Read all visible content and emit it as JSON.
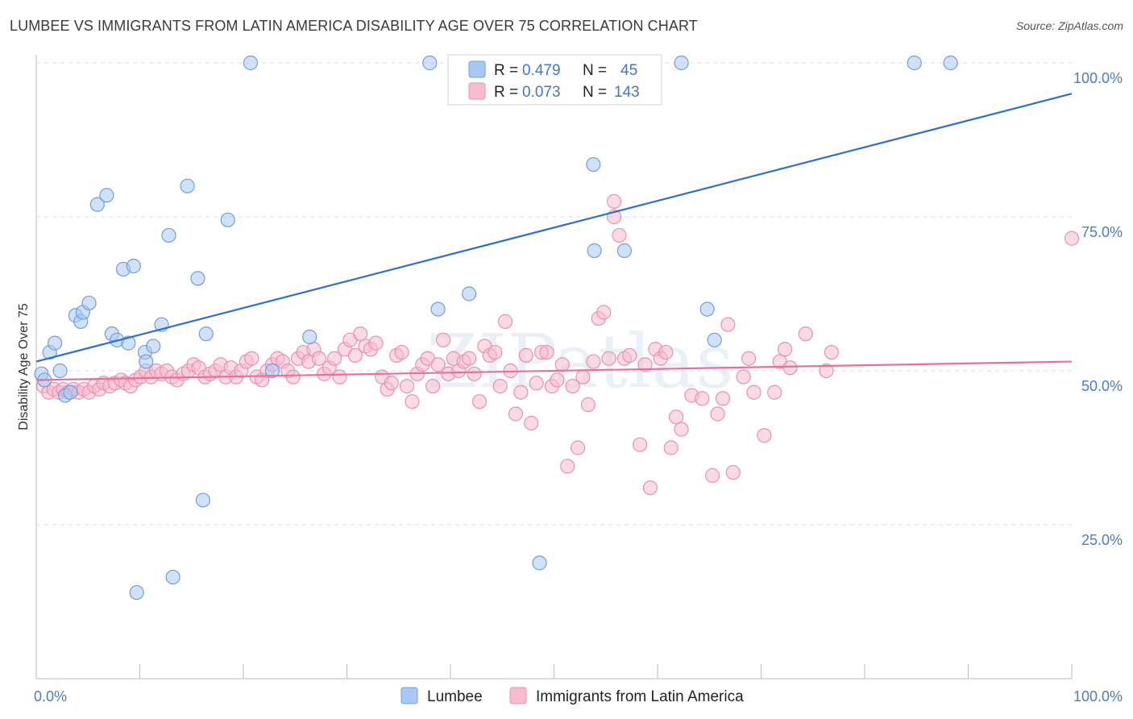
{
  "title": "LUMBEE VS IMMIGRANTS FROM LATIN AMERICA DISABILITY AGE OVER 75 CORRELATION CHART",
  "source": "Source: ZipAtlas.com",
  "watermark": "ZIPatlas",
  "colors": {
    "blue_fill": "#a9c8f3",
    "blue_stroke": "#6f9fe0",
    "blue_line": "#2f6fd0",
    "pink_fill": "#f6bdd0",
    "pink_stroke": "#ec8fae",
    "pink_line": "#e8709b",
    "grid": "#dedede",
    "tick_label": "#4a7cc9"
  },
  "legend": {
    "rows": [
      {
        "r_label": "R =",
        "r_value": "0.479",
        "n_label": "N =",
        "n_value": "45"
      },
      {
        "r_label": "R =",
        "r_value": "0.073",
        "n_label": "N =",
        "n_value": "143"
      }
    ]
  },
  "chart_data": {
    "type": "scatter",
    "title": "LUMBEE VS IMMIGRANTS FROM LATIN AMERICA DISABILITY AGE OVER 75 CORRELATION CHART",
    "xlabel": "",
    "ylabel": "Disability Age Over 75",
    "xlim": [
      0,
      100
    ],
    "ylim": [
      0,
      100
    ],
    "x_tick_labels": [
      "0.0%",
      "100.0%"
    ],
    "y_tick_labels": [
      {
        "value": 25,
        "label": "25.0%"
      },
      {
        "value": 50,
        "label": "50.0%"
      },
      {
        "value": 75,
        "label": "75.0%"
      },
      {
        "value": 100,
        "label": "100.0%"
      }
    ],
    "grid": true,
    "legend_position": "top-center",
    "series": [
      {
        "name": "Lumbee",
        "color": "#a9c8f3",
        "trend": {
          "x": [
            0,
            100
          ],
          "y": [
            51.5,
            95
          ]
        },
        "points": [
          [
            0.5,
            49.5
          ],
          [
            0.8,
            48.5
          ],
          [
            1.3,
            53
          ],
          [
            1.8,
            54.5
          ],
          [
            2.3,
            50
          ],
          [
            2.8,
            46
          ],
          [
            3.3,
            46.5
          ],
          [
            3.8,
            59
          ],
          [
            4.3,
            58
          ],
          [
            4.5,
            59.5
          ],
          [
            5.1,
            61
          ],
          [
            5.9,
            77
          ],
          [
            6.8,
            78.5
          ],
          [
            7.3,
            56
          ],
          [
            7.8,
            55
          ],
          [
            8.4,
            66.5
          ],
          [
            8.9,
            54.5
          ],
          [
            9.4,
            67
          ],
          [
            9.7,
            14
          ],
          [
            10.5,
            53
          ],
          [
            10.6,
            51.5
          ],
          [
            11.3,
            54
          ],
          [
            12.1,
            57.5
          ],
          [
            12.8,
            72
          ],
          [
            13.2,
            16.5
          ],
          [
            14.6,
            80
          ],
          [
            15.6,
            65
          ],
          [
            16.1,
            29
          ],
          [
            16.4,
            56
          ],
          [
            18.5,
            74.5
          ],
          [
            20.7,
            100
          ],
          [
            22.8,
            50
          ],
          [
            26.4,
            55.5
          ],
          [
            38,
            100
          ],
          [
            38.8,
            60
          ],
          [
            41.8,
            62.5
          ],
          [
            48.6,
            18.8
          ],
          [
            53.8,
            83.5
          ],
          [
            53.9,
            69.5
          ],
          [
            56.8,
            69.5
          ],
          [
            62.3,
            100
          ],
          [
            64.8,
            60
          ],
          [
            65.5,
            55
          ],
          [
            84.8,
            100
          ],
          [
            88.3,
            100
          ]
        ]
      },
      {
        "name": "Immigrants from Latin America",
        "color": "#f6bdd0",
        "trend": {
          "x": [
            0,
            100
          ],
          "y": [
            48.5,
            51.5
          ]
        },
        "points": [
          [
            0.7,
            47.5
          ],
          [
            1.2,
            46.5
          ],
          [
            1.7,
            47
          ],
          [
            2.2,
            46.5
          ],
          [
            2.6,
            47
          ],
          [
            3.1,
            46.5
          ],
          [
            3.6,
            47
          ],
          [
            4.1,
            46.5
          ],
          [
            4.6,
            47
          ],
          [
            5.1,
            46.5
          ],
          [
            5.6,
            47.5
          ],
          [
            6.1,
            47
          ],
          [
            6.5,
            48
          ],
          [
            7.1,
            47.5
          ],
          [
            7.6,
            48
          ],
          [
            8.2,
            48.5
          ],
          [
            8.6,
            48
          ],
          [
            9.1,
            47.5
          ],
          [
            9.6,
            48.5
          ],
          [
            10.1,
            49
          ],
          [
            10.6,
            50
          ],
          [
            11.1,
            49
          ],
          [
            11.6,
            50
          ],
          [
            12.1,
            49.5
          ],
          [
            12.6,
            50
          ],
          [
            13.1,
            49
          ],
          [
            13.6,
            48.5
          ],
          [
            14.2,
            49.5
          ],
          [
            14.7,
            50
          ],
          [
            15.2,
            51
          ],
          [
            15.7,
            50.5
          ],
          [
            16.3,
            49
          ],
          [
            16.8,
            49.5
          ],
          [
            17.3,
            50
          ],
          [
            17.8,
            51
          ],
          [
            18.3,
            49
          ],
          [
            18.8,
            50.5
          ],
          [
            19.3,
            49
          ],
          [
            19.8,
            50
          ],
          [
            20.3,
            51.5
          ],
          [
            20.8,
            52
          ],
          [
            21.3,
            49
          ],
          [
            21.8,
            48.5
          ],
          [
            22.3,
            50
          ],
          [
            22.8,
            51
          ],
          [
            23.3,
            52
          ],
          [
            23.8,
            51.5
          ],
          [
            24.3,
            50
          ],
          [
            24.8,
            49
          ],
          [
            25.3,
            52
          ],
          [
            25.8,
            53
          ],
          [
            26.3,
            51.5
          ],
          [
            26.8,
            53.5
          ],
          [
            27.3,
            52
          ],
          [
            27.8,
            49.5
          ],
          [
            28.3,
            50.5
          ],
          [
            28.8,
            52
          ],
          [
            29.3,
            49
          ],
          [
            29.8,
            53.5
          ],
          [
            30.3,
            55
          ],
          [
            30.8,
            52.5
          ],
          [
            31.3,
            56
          ],
          [
            31.8,
            54
          ],
          [
            32.3,
            53.5
          ],
          [
            32.8,
            54.5
          ],
          [
            33.4,
            49
          ],
          [
            33.9,
            47
          ],
          [
            34.3,
            48
          ],
          [
            34.8,
            52.5
          ],
          [
            35.3,
            53
          ],
          [
            35.8,
            47.5
          ],
          [
            36.3,
            45
          ],
          [
            36.8,
            49.5
          ],
          [
            37.3,
            51
          ],
          [
            37.8,
            52
          ],
          [
            38.3,
            47.5
          ],
          [
            38.8,
            51
          ],
          [
            39.3,
            55
          ],
          [
            39.8,
            49.5
          ],
          [
            40.3,
            52
          ],
          [
            40.8,
            50
          ],
          [
            41.3,
            51.5
          ],
          [
            41.8,
            52
          ],
          [
            42.3,
            49.5
          ],
          [
            42.8,
            45
          ],
          [
            43.3,
            54
          ],
          [
            43.8,
            52.5
          ],
          [
            44.3,
            53
          ],
          [
            44.8,
            47.5
          ],
          [
            45.3,
            58
          ],
          [
            45.8,
            50
          ],
          [
            46.3,
            43
          ],
          [
            46.8,
            46.5
          ],
          [
            47.3,
            52.5
          ],
          [
            47.8,
            41.5
          ],
          [
            48.3,
            48
          ],
          [
            48.8,
            53
          ],
          [
            49.3,
            53
          ],
          [
            49.8,
            47.5
          ],
          [
            50.3,
            48.5
          ],
          [
            50.8,
            51
          ],
          [
            51.3,
            34.5
          ],
          [
            51.8,
            47.5
          ],
          [
            52.3,
            37.5
          ],
          [
            52.8,
            49
          ],
          [
            53.3,
            44.5
          ],
          [
            53.8,
            51.5
          ],
          [
            54.3,
            58.5
          ],
          [
            54.8,
            59.5
          ],
          [
            55.3,
            52
          ],
          [
            55.8,
            75
          ],
          [
            56.3,
            72
          ],
          [
            56.8,
            52
          ],
          [
            57.3,
            52.5
          ],
          [
            58.3,
            38
          ],
          [
            58.8,
            51
          ],
          [
            59.3,
            31
          ],
          [
            59.8,
            53.5
          ],
          [
            60.3,
            52
          ],
          [
            60.8,
            53
          ],
          [
            61.3,
            37.5
          ],
          [
            61.8,
            42.5
          ],
          [
            62.3,
            40.5
          ],
          [
            63.3,
            46
          ],
          [
            64.3,
            45.5
          ],
          [
            65.3,
            33
          ],
          [
            65.8,
            43
          ],
          [
            66.3,
            45.5
          ],
          [
            66.8,
            57.5
          ],
          [
            67.3,
            33.5
          ],
          [
            68.3,
            49
          ],
          [
            68.8,
            52
          ],
          [
            69.3,
            46.5
          ],
          [
            70.3,
            39.5
          ],
          [
            71.3,
            46.5
          ],
          [
            71.8,
            51.5
          ],
          [
            72.3,
            53.5
          ],
          [
            72.8,
            50.5
          ],
          [
            74.3,
            56
          ],
          [
            76.3,
            50
          ],
          [
            76.8,
            53
          ],
          [
            100,
            71.5
          ],
          [
            55.8,
            77.5
          ]
        ]
      }
    ]
  }
}
